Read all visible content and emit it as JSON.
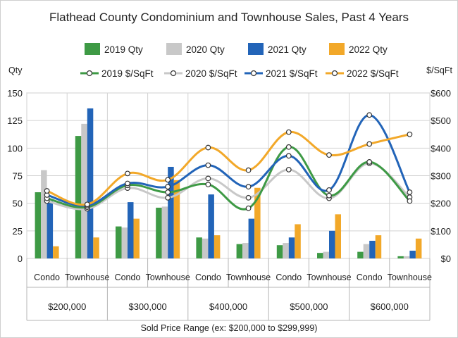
{
  "chart_data": {
    "type": "bar",
    "title": "Flathead County Condominium and Townhouse Sales, Past 4 Years",
    "xlabel": "Sold Price Range (ex: $200,000 to $299,999)",
    "ylabel_left": "Qty",
    "ylabel_right": "$/SqFt",
    "ylim_left": [
      0,
      150
    ],
    "ylim_right": [
      0,
      600
    ],
    "yticks_left": [
      "0",
      "25",
      "50",
      "75",
      "100",
      "125",
      "150"
    ],
    "yticks_right": [
      "$0",
      "$100",
      "$200",
      "$300",
      "$400",
      "$500",
      "$600"
    ],
    "groups": [
      "$200,000",
      "$300,000",
      "$400,000",
      "$500,000",
      "$600,000"
    ],
    "categories": [
      "Condo",
      "Townhouse",
      "Condo",
      "Townhouse",
      "Condo",
      "Townhouse",
      "Condo",
      "Townhouse",
      "Condo",
      "Townhouse"
    ],
    "bar_series": [
      {
        "name": "2019 Qty",
        "color": "#3e9a45",
        "values": [
          60,
          111,
          29,
          46,
          19,
          13,
          12,
          5,
          6,
          2
        ]
      },
      {
        "name": "2020 Qty",
        "color": "#c8c8c8",
        "values": [
          80,
          122,
          28,
          47,
          18,
          14,
          14,
          6,
          13,
          2
        ]
      },
      {
        "name": "2021 Qty",
        "color": "#2264b8",
        "values": [
          52,
          136,
          51,
          83,
          58,
          36,
          19,
          25,
          16,
          7
        ]
      },
      {
        "name": "2022 Qty",
        "color": "#f2a829",
        "values": [
          11,
          19,
          36,
          71,
          21,
          64,
          31,
          40,
          21,
          18
        ]
      }
    ],
    "line_series": [
      {
        "name": "2019 $/SqFt",
        "color": "#3e9a45",
        "values": [
          218,
          186,
          265,
          240,
          268,
          182,
          404,
          228,
          350,
          208
        ]
      },
      {
        "name": "2020 $/SqFt",
        "color": "#c8c8c8",
        "values": [
          208,
          180,
          255,
          220,
          290,
          220,
          322,
          218,
          345,
          222
        ]
      },
      {
        "name": "2021 $/SqFt",
        "color": "#2264b8",
        "values": [
          230,
          192,
          272,
          260,
          338,
          260,
          372,
          248,
          520,
          240
        ]
      },
      {
        "name": "2022 $/SqFt",
        "color": "#f2a829",
        "values": [
          245,
          196,
          308,
          285,
          402,
          320,
          458,
          375,
          415,
          450
        ]
      }
    ]
  }
}
